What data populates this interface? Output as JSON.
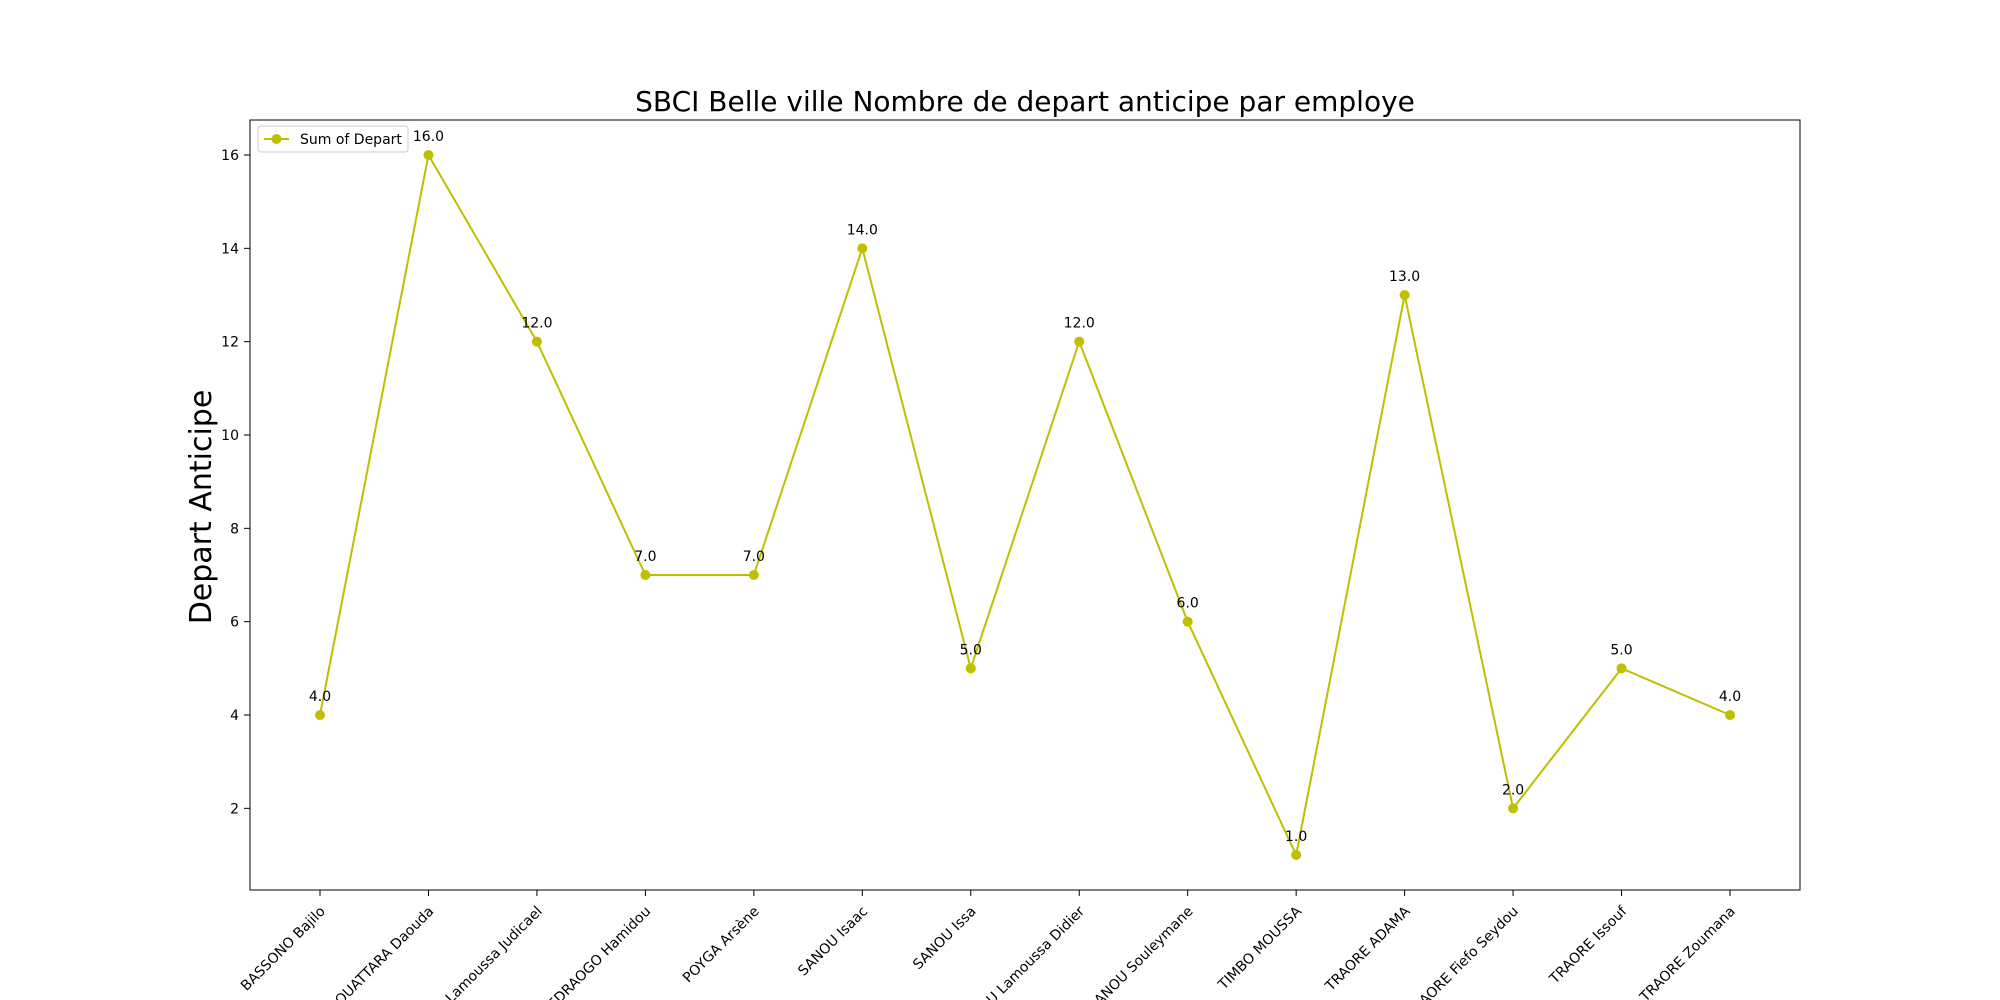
{
  "chart_data": {
    "type": "line",
    "title": "SBCI Belle ville Nombre de depart anticipe par employe",
    "xlabel": "",
    "ylabel": "Depart Anticipe",
    "categories": [
      "BASSONO Bajilo",
      "OUATTARA Daouda",
      "A Lamoussa Judicael",
      "OUEDRAOGO Hamidou",
      "POYGA Arsène",
      "SANOU Isaac",
      "SANOU Issa",
      "OU Lamoussa Didier",
      "SANOU Souleymane",
      "TIMBO MOUSSA",
      "TRAORE ADAMA",
      "RAORE Fiefo Seydou",
      "TRAORE Issouf",
      "TRAORE Zoumana"
    ],
    "series": [
      {
        "name": "Sum of Depart",
        "values": [
          4,
          16,
          12,
          7,
          7,
          14,
          5,
          12,
          6,
          1,
          13,
          2,
          5,
          4
        ],
        "labels": [
          "4.0",
          "16.0",
          "12.0",
          "7.0",
          "7.0",
          "14.0",
          "5.0",
          "12.0",
          "6.0",
          "1.0",
          "13.0",
          "2.0",
          "5.0",
          "4.0"
        ],
        "color": "#bfbf00",
        "marker": "circle"
      }
    ],
    "yticks": [
      2,
      4,
      6,
      8,
      10,
      12,
      14,
      16
    ],
    "ylim": [
      0.25,
      16.75
    ],
    "grid": false,
    "legend_position": "upper left"
  }
}
